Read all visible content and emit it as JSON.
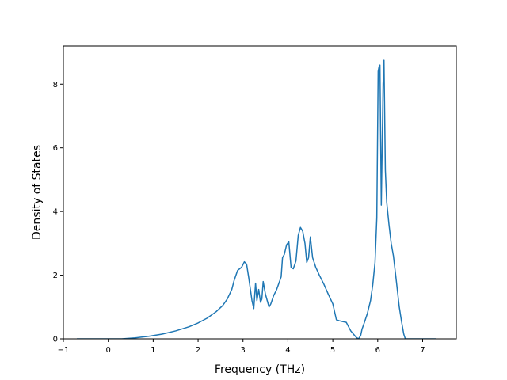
{
  "chart_data": {
    "type": "line",
    "title": "",
    "xlabel": "Frequency (THz)",
    "ylabel": "Density of States",
    "xlim": [
      -1.0,
      7.75
    ],
    "ylim": [
      0,
      9.2
    ],
    "x_ticks": [
      -1,
      0,
      1,
      2,
      3,
      4,
      5,
      6,
      7
    ],
    "x_tick_labels": [
      "−1",
      "0",
      "1",
      "2",
      "3",
      "4",
      "5",
      "6",
      "7"
    ],
    "y_ticks": [
      0,
      2,
      4,
      6,
      8
    ],
    "y_tick_labels": [
      "0",
      "2",
      "4",
      "6",
      "8"
    ],
    "grid": false,
    "legend": "none",
    "series": [
      {
        "color": "#1f77b4",
        "x": [
          -0.7,
          -0.5,
          0.0,
          0.3,
          0.6,
          0.9,
          1.2,
          1.5,
          1.8,
          2.0,
          2.2,
          2.4,
          2.55,
          2.65,
          2.75,
          2.8,
          2.88,
          2.97,
          3.03,
          3.08,
          3.13,
          3.2,
          3.24,
          3.28,
          3.31,
          3.35,
          3.39,
          3.42,
          3.45,
          3.5,
          3.55,
          3.58,
          3.62,
          3.68,
          3.75,
          3.85,
          3.88,
          3.92,
          3.97,
          4.02,
          4.07,
          4.12,
          4.18,
          4.23,
          4.28,
          4.33,
          4.38,
          4.42,
          4.46,
          4.5,
          4.55,
          4.62,
          4.7,
          4.8,
          4.9,
          5.0,
          5.08,
          5.14,
          5.2,
          5.3,
          5.4,
          5.46,
          5.52,
          5.57,
          5.62,
          5.65,
          5.7,
          5.77,
          5.84,
          5.89,
          5.94,
          5.98,
          6.01,
          6.03,
          6.05,
          6.08,
          6.12,
          6.14,
          6.17,
          6.2,
          6.25,
          6.3,
          6.35,
          6.4,
          6.44,
          6.48,
          6.53,
          6.58,
          6.61,
          6.63,
          6.65,
          6.67,
          6.75,
          6.9,
          7.3
        ],
        "y": [
          0.0,
          0.0,
          0.0,
          0.0,
          0.03,
          0.08,
          0.15,
          0.25,
          0.38,
          0.5,
          0.65,
          0.85,
          1.05,
          1.25,
          1.55,
          1.82,
          2.15,
          2.25,
          2.42,
          2.35,
          1.9,
          1.2,
          0.95,
          1.75,
          1.2,
          1.55,
          1.15,
          1.25,
          1.8,
          1.4,
          1.15,
          1.0,
          1.1,
          1.35,
          1.55,
          1.95,
          2.55,
          2.65,
          2.95,
          3.05,
          2.25,
          2.2,
          2.45,
          3.25,
          3.5,
          3.38,
          3.0,
          2.4,
          2.55,
          3.2,
          2.55,
          2.25,
          2.0,
          1.72,
          1.4,
          1.1,
          0.6,
          0.57,
          0.55,
          0.52,
          0.25,
          0.15,
          0.05,
          0.0,
          0.1,
          0.3,
          0.5,
          0.8,
          1.2,
          1.7,
          2.4,
          3.8,
          8.4,
          8.55,
          8.6,
          4.2,
          8.0,
          8.75,
          5.3,
          4.3,
          3.6,
          3.0,
          2.6,
          2.0,
          1.5,
          1.0,
          0.55,
          0.15,
          0.02,
          0.0,
          0.0,
          0.0,
          0.0,
          0.0,
          0.0
        ]
      }
    ]
  }
}
